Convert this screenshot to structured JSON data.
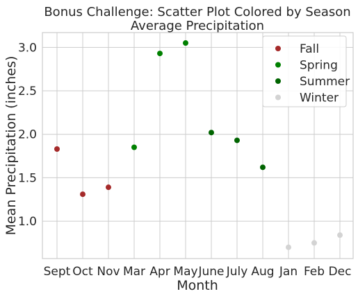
{
  "chart_data": {
    "type": "scatter",
    "title": "Bonus Challenge: Scatter Plot Colored by Season",
    "subtitle": "Average Precipitation",
    "xlabel": "Month",
    "ylabel": "Mean Precipitation (inches)",
    "categories": [
      "Sept",
      "Oct",
      "Nov",
      "Mar",
      "Apr",
      "May",
      "June",
      "July",
      "Aug",
      "Jan",
      "Feb",
      "Dec"
    ],
    "ylim": [
      0.57,
      3.17
    ],
    "yticks": [
      "1.0",
      "1.5",
      "2.0",
      "2.5",
      "3.0"
    ],
    "grid": true,
    "legend_position": "top-right",
    "series": [
      {
        "name": "Fall",
        "color": "#a52a2a",
        "x": [
          "Sept",
          "Oct",
          "Nov"
        ],
        "values": [
          1.83,
          1.31,
          1.39
        ]
      },
      {
        "name": "Spring",
        "color": "#008000",
        "x": [
          "Mar",
          "Apr",
          "May"
        ],
        "values": [
          1.85,
          2.93,
          3.05
        ]
      },
      {
        "name": "Summer",
        "color": "#006400",
        "x": [
          "June",
          "July",
          "Aug"
        ],
        "values": [
          2.02,
          1.93,
          1.62
        ]
      },
      {
        "name": "Winter",
        "color": "#d3d3d3",
        "x": [
          "Jan",
          "Feb",
          "Dec"
        ],
        "values": [
          0.7,
          0.75,
          0.84
        ]
      }
    ]
  }
}
